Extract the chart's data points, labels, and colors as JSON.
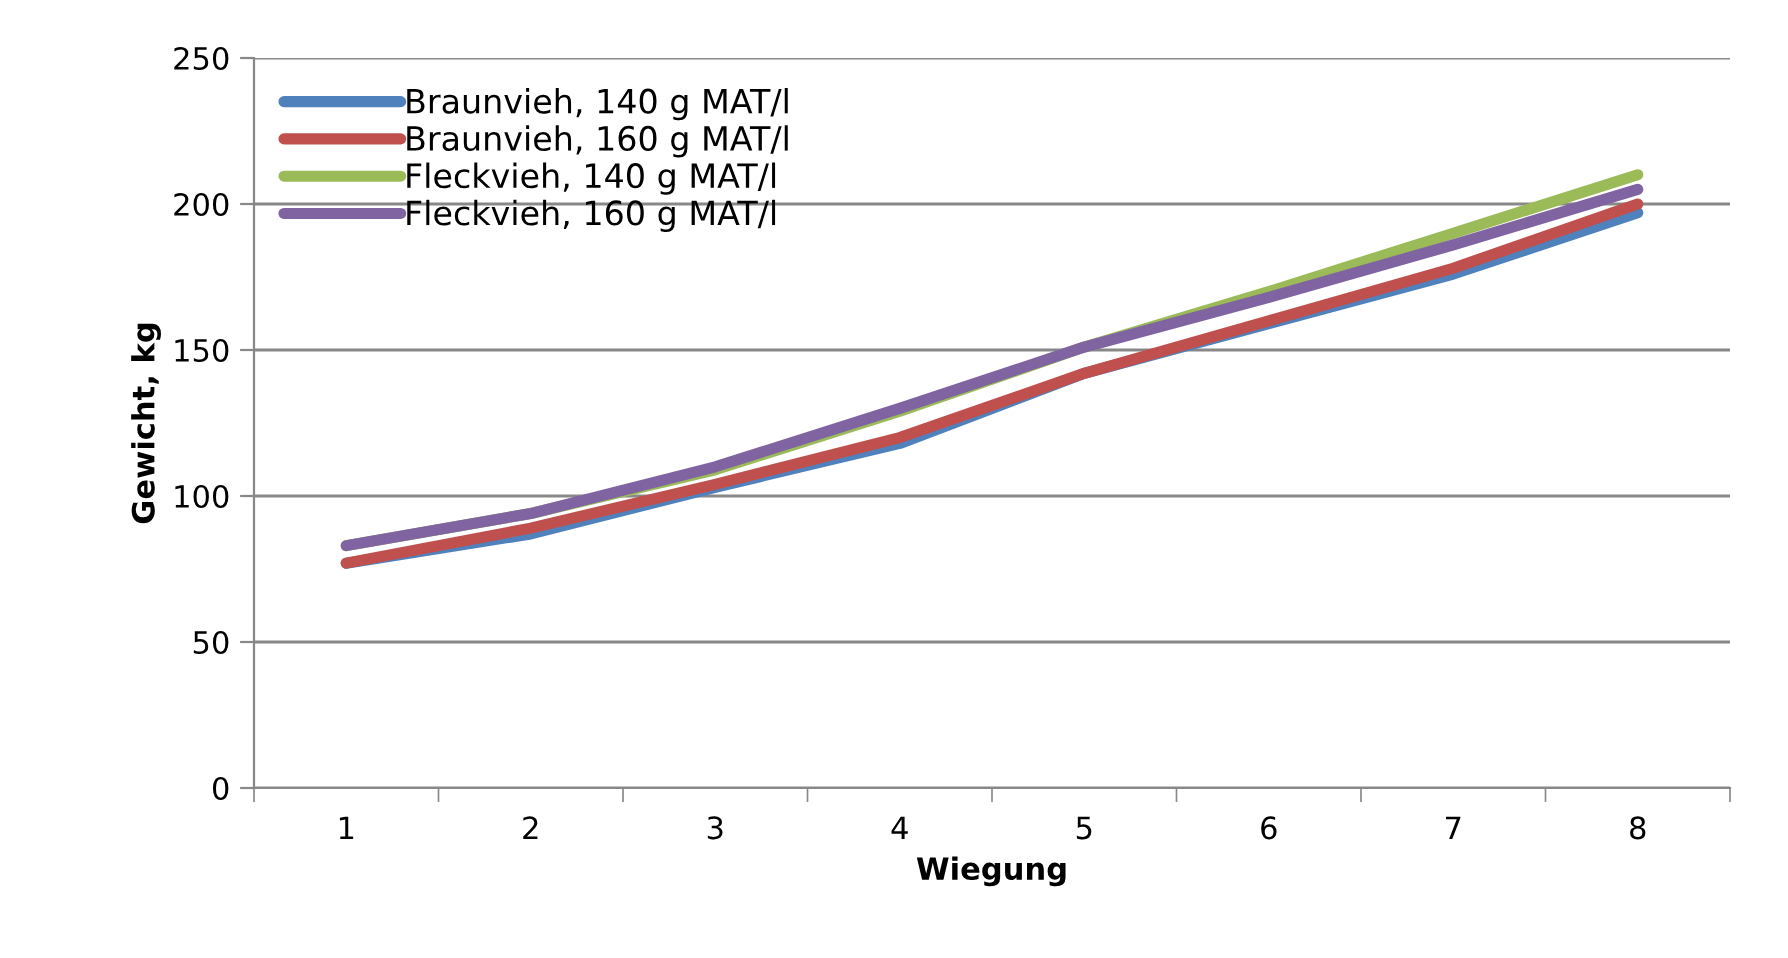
{
  "chart_data": {
    "type": "line",
    "xlabel": "Wiegung",
    "ylabel": "Gewicht, kg",
    "categories": [
      "1",
      "2",
      "3",
      "4",
      "5",
      "6",
      "7",
      "8"
    ],
    "series": [
      {
        "name": "Braunvieh, 140 g MAT/l",
        "color": "#4f81bd",
        "values": [
          77,
          87,
          103,
          118,
          142,
          159,
          176,
          197
        ]
      },
      {
        "name": "Braunvieh, 160 g MAT/l",
        "color": "#c0504d",
        "values": [
          77,
          89,
          104,
          120,
          142,
          160,
          178,
          200
        ]
      },
      {
        "name": "Fleckvieh, 140 g MAT/l",
        "color": "#9bbb59",
        "values": [
          83,
          94,
          109,
          129,
          151,
          170,
          190,
          210
        ]
      },
      {
        "name": "Fleckvieh, 160 g MAT/l",
        "color": "#8064a2",
        "values": [
          83,
          94,
          110,
          130,
          151,
          168,
          186,
          205
        ]
      }
    ],
    "ylim": [
      0,
      250
    ],
    "yticks": [
      0,
      50,
      100,
      150,
      200,
      250
    ],
    "grid": "y",
    "legend": "top left"
  }
}
